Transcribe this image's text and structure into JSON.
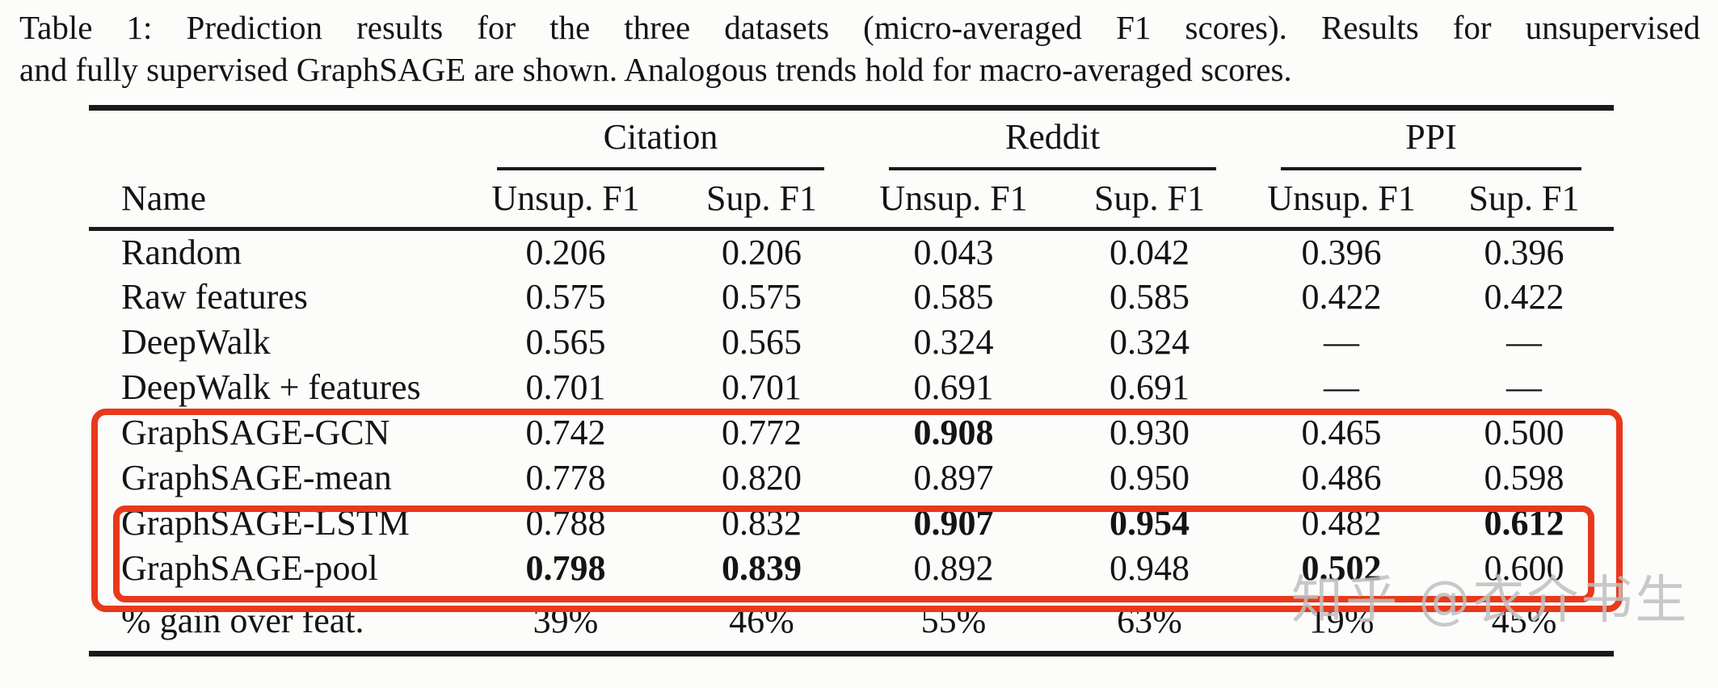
{
  "caption": {
    "lines": [
      "Table 1: Prediction results for the three datasets (micro-averaged F1 scores). Results for unsupervised",
      "and fully supervised GraphSAGE are shown. Analogous trends hold for macro-averaged scores."
    ]
  },
  "table": {
    "groups": [
      {
        "label": "Citation"
      },
      {
        "label": "Reddit"
      },
      {
        "label": "PPI"
      }
    ],
    "columns": [
      "Name",
      "Unsup. F1",
      "Sup. F1",
      "Unsup. F1",
      "Sup. F1",
      "Unsup. F1",
      "Sup. F1"
    ],
    "rows": [
      {
        "name": "Random",
        "values": [
          "0.206",
          "0.206",
          "0.043",
          "0.042",
          "0.396",
          "0.396"
        ],
        "bold": [
          0,
          0,
          0,
          0,
          0,
          0
        ]
      },
      {
        "name": "Raw features",
        "values": [
          "0.575",
          "0.575",
          "0.585",
          "0.585",
          "0.422",
          "0.422"
        ],
        "bold": [
          0,
          0,
          0,
          0,
          0,
          0
        ]
      },
      {
        "name": "DeepWalk",
        "values": [
          "0.565",
          "0.565",
          "0.324",
          "0.324",
          "—",
          "—"
        ],
        "bold": [
          0,
          0,
          0,
          0,
          0,
          0
        ]
      },
      {
        "name": "DeepWalk + features",
        "values": [
          "0.701",
          "0.701",
          "0.691",
          "0.691",
          "—",
          "—"
        ],
        "bold": [
          0,
          0,
          0,
          0,
          0,
          0
        ]
      },
      {
        "name": "GraphSAGE-GCN",
        "values": [
          "0.742",
          "0.772",
          "0.908",
          "0.930",
          "0.465",
          "0.500"
        ],
        "bold": [
          0,
          0,
          1,
          0,
          0,
          0
        ]
      },
      {
        "name": "GraphSAGE-mean",
        "values": [
          "0.778",
          "0.820",
          "0.897",
          "0.950",
          "0.486",
          "0.598"
        ],
        "bold": [
          0,
          0,
          0,
          0,
          0,
          0
        ]
      },
      {
        "name": "GraphSAGE-LSTM",
        "values": [
          "0.788",
          "0.832",
          "0.907",
          "0.954",
          "0.482",
          "0.612"
        ],
        "bold": [
          0,
          0,
          1,
          1,
          0,
          1
        ]
      },
      {
        "name": "GraphSAGE-pool",
        "values": [
          "0.798",
          "0.839",
          "0.892",
          "0.948",
          "0.502",
          "0.600"
        ],
        "bold": [
          1,
          1,
          0,
          0,
          1,
          0
        ]
      }
    ],
    "gain_row": {
      "name": "% gain over feat.",
      "values": [
        "39%",
        "46%",
        "55%",
        "63%",
        "19%",
        "45%"
      ]
    }
  },
  "annotations": {
    "highlight_color": "#e8391a",
    "outer_box_note": "highlights GraphSAGE-GCN through GraphSAGE-pool rows",
    "inner_box_note": "highlights GraphSAGE-LSTM and GraphSAGE-pool rows"
  },
  "watermark": {
    "text": "知乎 @衣介书生",
    "color": "#c0c0c0"
  }
}
